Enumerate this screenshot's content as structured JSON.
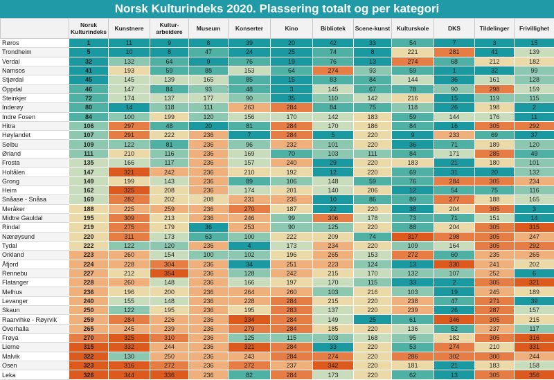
{
  "title": "Norsk Kulturindeks 2020. Plassering totalt og per kategori",
  "headers": [
    "",
    "Norsk Kulturindeks",
    "Kunstnere",
    "Kultur-arbeidere",
    "Museum",
    "Konserter",
    "Kino",
    "Bibliotek",
    "Scene-kunst",
    "Kulturskole",
    "DKS",
    "Tildelinger",
    "Frivillighet"
  ],
  "colors": {
    "header_bg": "#1f9aa6",
    "scale": [
      "#1a9aa0",
      "#4fb0a4",
      "#8cc7b0",
      "#c9dcbc",
      "#ebd9a8",
      "#f0b07c",
      "#e57d45",
      "#dc5a1e"
    ]
  },
  "chart_data": {
    "type": "table",
    "title": "Norsk Kulturindeks 2020. Plassering totalt og per kategori",
    "max_rank": 356,
    "columns": [
      "Norsk Kulturindeks",
      "Kunstnere",
      "Kultur-arbeidere",
      "Museum",
      "Konserter",
      "Kino",
      "Bibliotek",
      "Scene-kunst",
      "Kulturskole",
      "DKS",
      "Tildelinger",
      "Frivillighet"
    ],
    "rows": [
      {
        "name": "Røros",
        "values": [
          1,
          11,
          9,
          8,
          39,
          20,
          42,
          33,
          54,
          7,
          3,
          15
        ]
      },
      {
        "name": "Trondheim",
        "values": [
          5,
          10,
          8,
          47,
          24,
          25,
          74,
          8,
          221,
          281,
          41,
          139
        ]
      },
      {
        "name": "Verdal",
        "values": [
          32,
          132,
          64,
          9,
          76,
          19,
          76,
          13,
          274,
          68,
          212,
          182
        ]
      },
      {
        "name": "Namsos",
        "values": [
          41,
          193,
          59,
          88,
          153,
          64,
          274,
          93,
          59,
          1,
          32,
          99
        ]
      },
      {
        "name": "Stjørdal",
        "values": [
          45,
          145,
          139,
          165,
          85,
          15,
          83,
          84,
          144,
          36,
          161,
          128
        ]
      },
      {
        "name": "Oppdal",
        "values": [
          46,
          147,
          84,
          93,
          48,
          3,
          145,
          67,
          78,
          90,
          298,
          159
        ]
      },
      {
        "name": "Steinkjer",
        "values": [
          72,
          174,
          137,
          177,
          90,
          35,
          110,
          142,
          216,
          15,
          119,
          115
        ]
      },
      {
        "name": "Inderøy",
        "values": [
          80,
          14,
          118,
          111,
          263,
          284,
          84,
          75,
          118,
          26,
          198,
          2
        ]
      },
      {
        "name": "Indre Fosen",
        "values": [
          84,
          100,
          199,
          120,
          156,
          170,
          142,
          183,
          59,
          144,
          176,
          11
        ]
      },
      {
        "name": "Hitra",
        "values": [
          106,
          297,
          48,
          20,
          81,
          284,
          170,
          186,
          84,
          16,
          305,
          292
        ]
      },
      {
        "name": "Høylandet",
        "values": [
          107,
          291,
          222,
          236,
          7,
          284,
          5,
          220,
          9,
          233,
          69,
          37
        ]
      },
      {
        "name": "Selbu",
        "values": [
          109,
          122,
          81,
          236,
          96,
          232,
          101,
          220,
          36,
          71,
          189,
          120
        ]
      },
      {
        "name": "Ørland",
        "values": [
          111,
          210,
          116,
          236,
          169,
          70,
          103,
          111,
          84,
          171,
          285,
          49
        ]
      },
      {
        "name": "Frosta",
        "values": [
          135,
          166,
          117,
          236,
          157,
          240,
          29,
          220,
          183,
          21,
          180,
          101
        ]
      },
      {
        "name": "Holtålen",
        "values": [
          147,
          321,
          242,
          236,
          210,
          192,
          12,
          220,
          69,
          31,
          20,
          132
        ]
      },
      {
        "name": "Grong",
        "values": [
          149,
          199,
          143,
          236,
          89,
          106,
          148,
          59,
          76,
          284,
          305,
          234
        ]
      },
      {
        "name": "Heim",
        "values": [
          162,
          325,
          208,
          236,
          174,
          201,
          140,
          206,
          12,
          54,
          75,
          116
        ]
      },
      {
        "name": "Snåase - Snåsa",
        "values": [
          169,
          282,
          202,
          208,
          231,
          235,
          10,
          86,
          89,
          277,
          188,
          165
        ]
      },
      {
        "name": "Meråker",
        "values": [
          188,
          225,
          259,
          236,
          270,
          187,
          22,
          220,
          38,
          204,
          305,
          3
        ]
      },
      {
        "name": "Midtre Gauldal",
        "values": [
          195,
          309,
          213,
          236,
          246,
          99,
          306,
          178,
          73,
          71,
          151,
          14
        ]
      },
      {
        "name": "Rindal",
        "values": [
          219,
          275,
          179,
          36,
          253,
          90,
          125,
          220,
          88,
          204,
          305,
          315
        ]
      },
      {
        "name": "Nærøysund",
        "values": [
          220,
          311,
          173,
          63,
          100,
          222,
          209,
          74,
          317,
          298,
          305,
          247
        ]
      },
      {
        "name": "Tydal",
        "values": [
          222,
          122,
          120,
          236,
          4,
          173,
          234,
          220,
          109,
          164,
          305,
          292
        ]
      },
      {
        "name": "Orkland",
        "values": [
          223,
          260,
          154,
          100,
          102,
          196,
          265,
          153,
          272,
          60,
          235,
          265
        ]
      },
      {
        "name": "Åfjord",
        "values": [
          224,
          228,
          304,
          236,
          34,
          251,
          223,
          124,
          13,
          330,
          241,
          202
        ]
      },
      {
        "name": "Rennebu",
        "values": [
          227,
          212,
          354,
          236,
          128,
          242,
          215,
          170,
          132,
          107,
          252,
          6
        ]
      },
      {
        "name": "Flatanger",
        "values": [
          228,
          260,
          148,
          236,
          166,
          197,
          170,
          115,
          33,
          2,
          305,
          321
        ]
      },
      {
        "name": "Melhus",
        "values": [
          236,
          196,
          200,
          236,
          264,
          260,
          103,
          216,
          103,
          19,
          245,
          189
        ]
      },
      {
        "name": "Levanger",
        "values": [
          240,
          155,
          148,
          236,
          228,
          284,
          215,
          220,
          238,
          47,
          271,
          39
        ]
      },
      {
        "name": "Skaun",
        "values": [
          250,
          122,
          195,
          236,
          195,
          283,
          137,
          220,
          239,
          26,
          287,
          157
        ]
      },
      {
        "name": "Raarvihke - Røyrvik",
        "values": [
          259,
          284,
          226,
          236,
          334,
          284,
          149,
          25,
          61,
          346,
          305,
          215
        ]
      },
      {
        "name": "Overhalla",
        "values": [
          265,
          245,
          239,
          236,
          279,
          284,
          185,
          220,
          136,
          52,
          237,
          117
        ]
      },
      {
        "name": "Frøya",
        "values": [
          270,
          325,
          310,
          236,
          125,
          115,
          103,
          168,
          95,
          182,
          305,
          316
        ]
      },
      {
        "name": "Lierne",
        "values": [
          315,
          332,
          244,
          236,
          321,
          284,
          33,
          220,
          53,
          274,
          210,
          331
        ]
      },
      {
        "name": "Malvik",
        "values": [
          322,
          130,
          250,
          236,
          243,
          284,
          274,
          220,
          286,
          302,
          300,
          244
        ]
      },
      {
        "name": "Osen",
        "values": [
          323,
          316,
          272,
          236,
          272,
          237,
          342,
          220,
          181,
          21,
          183,
          158
        ]
      },
      {
        "name": "Leka",
        "values": [
          326,
          344,
          336,
          236,
          82,
          284,
          173,
          220,
          62,
          13,
          305,
          356
        ]
      }
    ]
  }
}
